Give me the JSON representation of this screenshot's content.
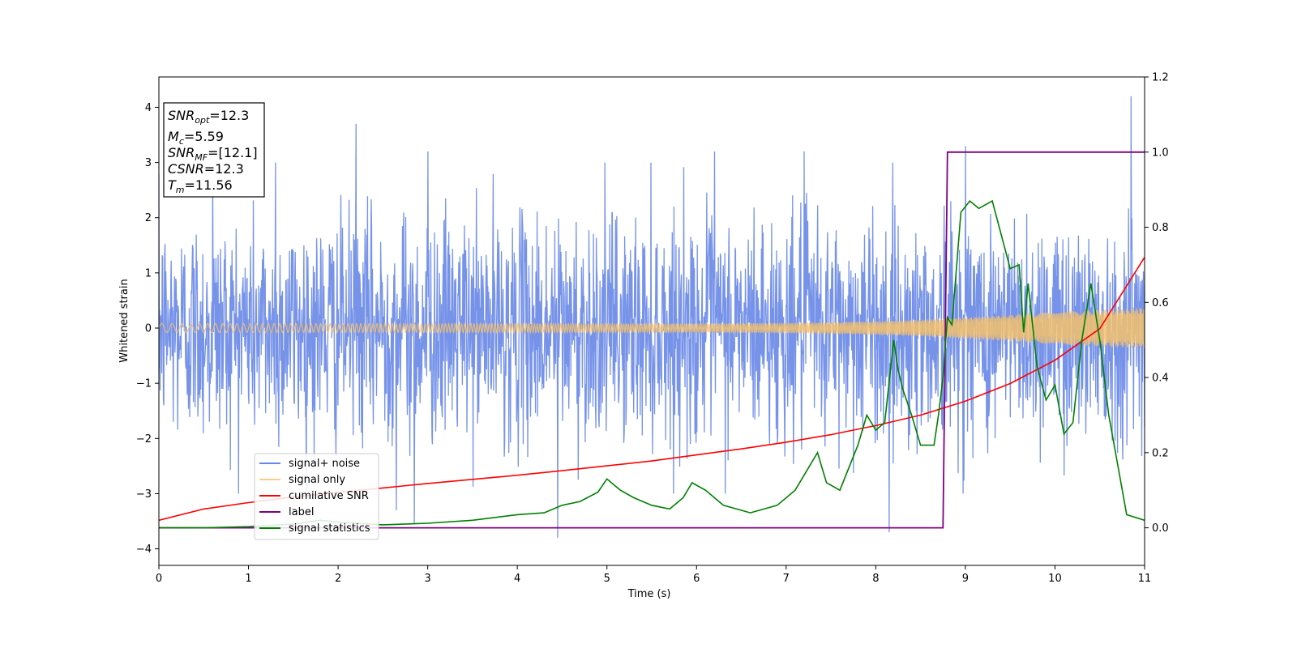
{
  "chart_data": {
    "type": "line",
    "xlabel": "Time (s)",
    "ylabel": "Whitened strain",
    "xlim": [
      0,
      11
    ],
    "ylim_left": [
      -4.3,
      4.55
    ],
    "ylim_right": [
      -0.1,
      1.2
    ],
    "x_ticks": [
      0,
      1,
      2,
      3,
      4,
      5,
      6,
      7,
      8,
      9,
      10,
      11
    ],
    "y_ticks_left": [
      -4,
      -3,
      -2,
      -1,
      0,
      1,
      2,
      3,
      4
    ],
    "y_ticks_right": [
      0.0,
      0.2,
      0.4,
      0.6,
      0.8,
      1.0,
      1.2
    ],
    "grid": false,
    "legend_placement": "lower-left",
    "colors": {
      "signal_noise": "#4169e1",
      "signal_only": "#f5c16c",
      "cumulative_snr": "#ff0000",
      "label": "#800080",
      "signal_statistics": "#008000"
    },
    "series": [
      {
        "name": "signal+ noise",
        "axis": "left",
        "style": "noise band, amplitude about 2.5 with peaks near 4.2",
        "peaks": [
          [
            0.6,
            3.1
          ],
          [
            1.3,
            3.0
          ],
          [
            2.2,
            3.7
          ],
          [
            2.65,
            -3.3
          ],
          [
            2.85,
            -3.55
          ],
          [
            3.0,
            3.2
          ],
          [
            4.45,
            -3.8
          ],
          [
            6.2,
            3.2
          ],
          [
            7.2,
            3.2
          ],
          [
            8.15,
            -3.7
          ],
          [
            9.0,
            3.3
          ],
          [
            10.85,
            4.2
          ]
        ]
      },
      {
        "name": "signal only",
        "axis": "left",
        "style": "chirp envelope growing with time",
        "envelope": [
          [
            0,
            0.08
          ],
          [
            2,
            0.08
          ],
          [
            4,
            0.08
          ],
          [
            6,
            0.08
          ],
          [
            7,
            0.09
          ],
          [
            8,
            0.12
          ],
          [
            8.5,
            0.15
          ],
          [
            9,
            0.19
          ],
          [
            9.5,
            0.24
          ],
          [
            10,
            0.29
          ],
          [
            10.5,
            0.33
          ],
          [
            11,
            0.37
          ]
        ]
      },
      {
        "name": "cumilative SNR",
        "axis": "right",
        "x": [
          0,
          0.5,
          1,
          1.5,
          2,
          2.5,
          3,
          3.5,
          4,
          4.5,
          5,
          5.5,
          6,
          6.5,
          7,
          7.5,
          8,
          8.5,
          9,
          9.5,
          10,
          10.5,
          11
        ],
        "y": [
          0.02,
          0.05,
          0.067,
          0.082,
          0.094,
          0.106,
          0.118,
          0.129,
          0.14,
          0.152,
          0.165,
          0.178,
          0.194,
          0.21,
          0.228,
          0.248,
          0.272,
          0.3,
          0.337,
          0.384,
          0.446,
          0.53,
          0.72
        ]
      },
      {
        "name": "label",
        "axis": "right",
        "x": [
          0,
          8.75,
          8.8,
          11
        ],
        "y": [
          0,
          0,
          1,
          1
        ]
      },
      {
        "name": "signal statistics",
        "axis": "right",
        "x": [
          0,
          0.5,
          1,
          1.5,
          1.8,
          2.0,
          2.5,
          3.0,
          3.5,
          4.0,
          4.3,
          4.5,
          4.7,
          4.9,
          5.0,
          5.15,
          5.3,
          5.5,
          5.7,
          5.85,
          5.95,
          6.1,
          6.3,
          6.6,
          6.9,
          7.1,
          7.35,
          7.45,
          7.6,
          7.8,
          7.9,
          8.0,
          8.1,
          8.2,
          8.25,
          8.3,
          8.4,
          8.5,
          8.65,
          8.7,
          8.75,
          8.8,
          8.85,
          8.95,
          9.05,
          9.15,
          9.3,
          9.5,
          9.6,
          9.65,
          9.7,
          9.8,
          9.9,
          10.0,
          10.1,
          10.2,
          10.3,
          10.4,
          10.5,
          10.6,
          10.8,
          11.0
        ],
        "y": [
          0,
          0,
          0.003,
          0.01,
          0.02,
          0.015,
          0.008,
          0.012,
          0.02,
          0.035,
          0.04,
          0.06,
          0.07,
          0.095,
          0.13,
          0.1,
          0.08,
          0.06,
          0.05,
          0.08,
          0.12,
          0.1,
          0.06,
          0.04,
          0.06,
          0.1,
          0.2,
          0.12,
          0.1,
          0.22,
          0.3,
          0.26,
          0.28,
          0.5,
          0.42,
          0.37,
          0.3,
          0.22,
          0.22,
          0.3,
          0.4,
          0.56,
          0.54,
          0.84,
          0.87,
          0.85,
          0.87,
          0.69,
          0.7,
          0.52,
          0.65,
          0.43,
          0.34,
          0.38,
          0.25,
          0.28,
          0.5,
          0.65,
          0.5,
          0.3,
          0.035,
          0.02
        ]
      }
    ],
    "annotation": {
      "snr_opt_base": "SNR",
      "snr_opt_sub": "opt",
      "snr_opt_value": "=12.3",
      "mc_base": "M",
      "mc_sub": "c",
      "mc_value": "=5.59",
      "snr_mf_base": "SNR",
      "snr_mf_sub": "MF",
      "snr_mf_value": "=[12.1]",
      "csnr_base": "CSNR",
      "csnr_value": "=12.3",
      "tm_base": "T",
      "tm_sub": "m",
      "tm_value": "=11.56"
    }
  }
}
